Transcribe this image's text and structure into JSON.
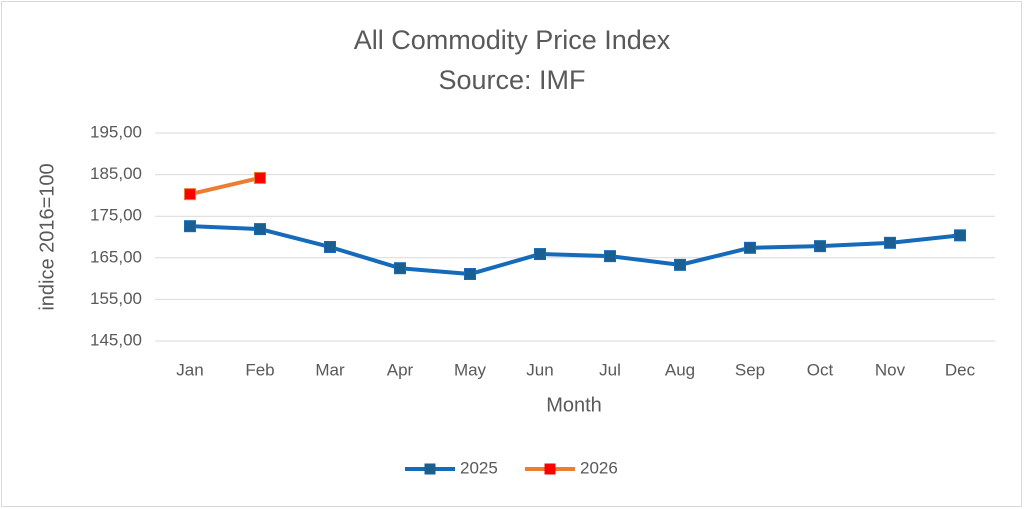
{
  "chart_data": {
    "type": "line",
    "title": [
      "All Commodity Price Index",
      "Source: IMF"
    ],
    "x_label": "Month",
    "y_label": "indice 2016=100",
    "categories": [
      "Jan",
      "Feb",
      "Mar",
      "Apr",
      "May",
      "Jun",
      "Jul",
      "Aug",
      "Sep",
      "Oct",
      "Nov",
      "Dec"
    ],
    "series": [
      {
        "name": "2025",
        "color": "#156aba",
        "marker_color": "#1a5f8f",
        "values": [
          172.6,
          171.9,
          167.6,
          162.5,
          161.1,
          165.9,
          165.4,
          163.3,
          167.4,
          167.8,
          168.6,
          170.4
        ]
      },
      {
        "name": "2026",
        "color": "#ed7d31",
        "marker_color": "#ff0000",
        "values": [
          180.3,
          184.2,
          null,
          null,
          null,
          null,
          null,
          null,
          null,
          null,
          null,
          null
        ]
      }
    ],
    "ylim": [
      145,
      195
    ],
    "yticks": [
      {
        "value": 145,
        "label": "145,00"
      },
      {
        "value": 155,
        "label": "155,00"
      },
      {
        "value": 165,
        "label": "165,00"
      },
      {
        "value": 175,
        "label": "175,00"
      },
      {
        "value": 185,
        "label": "185,00"
      },
      {
        "value": 195,
        "label": "195,00"
      }
    ],
    "grid": true,
    "legend": "bottom"
  }
}
